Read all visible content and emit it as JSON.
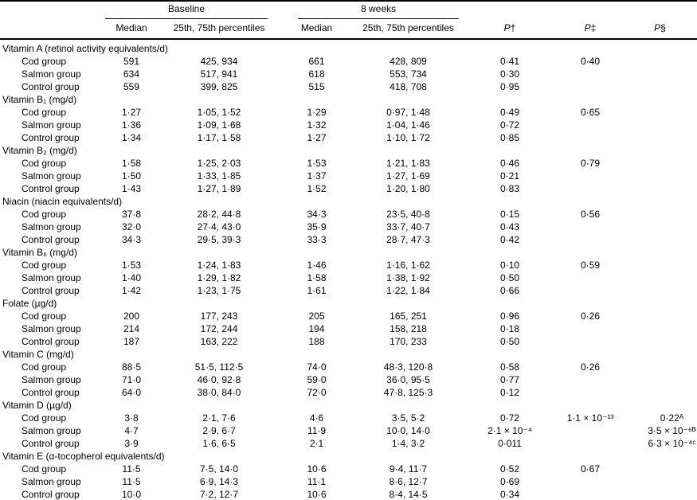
{
  "table": {
    "header": {
      "baseline": "Baseline",
      "eight_weeks": "8 weeks",
      "median": "Median",
      "percentiles": "25th, 75th percentiles",
      "p_columns": [
        {
          "p": "P",
          "mark": "†"
        },
        {
          "p": "P",
          "mark": "‡"
        },
        {
          "p": "P",
          "mark": "§"
        }
      ]
    },
    "sections": [
      {
        "name": "Vitamin A (retinol activity equivalents/d)",
        "rows": [
          {
            "label": "Cod group",
            "baseline_median": "591",
            "baseline_pct": "425, 934",
            "wk8_median": "661",
            "wk8_pct": "428, 809",
            "p1": "0·41",
            "p2": "0·40",
            "p3": ""
          },
          {
            "label": "Salmon group",
            "baseline_median": "634",
            "baseline_pct": "517, 941",
            "wk8_median": "618",
            "wk8_pct": "553, 734",
            "p1": "0·30",
            "p2": "",
            "p3": ""
          },
          {
            "label": "Control group",
            "baseline_median": "559",
            "baseline_pct": "399, 825",
            "wk8_median": "515",
            "wk8_pct": "418, 708",
            "p1": "0·95",
            "p2": "",
            "p3": ""
          }
        ]
      },
      {
        "name": "Vitamin B₁ (mg/d)",
        "rows": [
          {
            "label": "Cod group",
            "baseline_median": "1·27",
            "baseline_pct": "1·05, 1·52",
            "wk8_median": "1·29",
            "wk8_pct": "0·97, 1·48",
            "p1": "0·49",
            "p2": "0·65",
            "p3": ""
          },
          {
            "label": "Salmon group",
            "baseline_median": "1·36",
            "baseline_pct": "1·09, 1·68",
            "wk8_median": "1·32",
            "wk8_pct": "1·04, 1·46",
            "p1": "0·72",
            "p2": "",
            "p3": ""
          },
          {
            "label": "Control group",
            "baseline_median": "1·34",
            "baseline_pct": "1·17, 1·58",
            "wk8_median": "1·27",
            "wk8_pct": "1·10, 1·72",
            "p1": "0·85",
            "p2": "",
            "p3": ""
          }
        ]
      },
      {
        "name": "Vitamin B₂ (mg/d)",
        "rows": [
          {
            "label": "Cod group",
            "baseline_median": "1·58",
            "baseline_pct": "1·25, 2·03",
            "wk8_median": "1·53",
            "wk8_pct": "1·21, 1·83",
            "p1": "0·46",
            "p2": "0·79",
            "p3": ""
          },
          {
            "label": "Salmon group",
            "baseline_median": "1·50",
            "baseline_pct": "1·33, 1·85",
            "wk8_median": "1·37",
            "wk8_pct": "1·27, 1·69",
            "p1": "0·21",
            "p2": "",
            "p3": ""
          },
          {
            "label": "Control group",
            "baseline_median": "1·43",
            "baseline_pct": "1·27, 1·89",
            "wk8_median": "1·52",
            "wk8_pct": "1·20, 1·80",
            "p1": "0·83",
            "p2": "",
            "p3": ""
          }
        ]
      },
      {
        "name": "Niacin (niacin equivalents/d)",
        "rows": [
          {
            "label": "Cod group",
            "baseline_median": "37·8",
            "baseline_pct": "28·2, 44·8",
            "wk8_median": "34·3",
            "wk8_pct": "23·5, 40·8",
            "p1": "0·15",
            "p2": "0·56",
            "p3": ""
          },
          {
            "label": "Salmon group",
            "baseline_median": "32·0",
            "baseline_pct": "27·4, 43·0",
            "wk8_median": "35·9",
            "wk8_pct": "33·7, 40·7",
            "p1": "0·43",
            "p2": "",
            "p3": ""
          },
          {
            "label": "Control group",
            "baseline_median": "34·3",
            "baseline_pct": "29·5, 39·3",
            "wk8_median": "33·3",
            "wk8_pct": "28·7, 47·3",
            "p1": "0·42",
            "p2": "",
            "p3": ""
          }
        ]
      },
      {
        "name": "Vitamin B₆ (mg/d)",
        "rows": [
          {
            "label": "Cod group",
            "baseline_median": "1·53",
            "baseline_pct": "1·24, 1·83",
            "wk8_median": "1·46",
            "wk8_pct": "1·16, 1·62",
            "p1": "0·10",
            "p2": "0·59",
            "p3": ""
          },
          {
            "label": "Salmon group",
            "baseline_median": "1·40",
            "baseline_pct": "1·29, 1·82",
            "wk8_median": "1·58",
            "wk8_pct": "1·38, 1·92",
            "p1": "0·50",
            "p2": "",
            "p3": ""
          },
          {
            "label": "Control group",
            "baseline_median": "1·42",
            "baseline_pct": "1·23, 1·75",
            "wk8_median": "1·61",
            "wk8_pct": "1·22, 1·84",
            "p1": "0·66",
            "p2": "",
            "p3": ""
          }
        ]
      },
      {
        "name": "Folate (µg/d)",
        "rows": [
          {
            "label": "Cod group",
            "baseline_median": "200",
            "baseline_pct": "177, 243",
            "wk8_median": "205",
            "wk8_pct": "165, 251",
            "p1": "0·96",
            "p2": "0·26",
            "p3": ""
          },
          {
            "label": "Salmon group",
            "baseline_median": "214",
            "baseline_pct": "172, 244",
            "wk8_median": "194",
            "wk8_pct": "158, 218",
            "p1": "0·18",
            "p2": "",
            "p3": ""
          },
          {
            "label": "Control group",
            "baseline_median": "187",
            "baseline_pct": "163, 222",
            "wk8_median": "188",
            "wk8_pct": "170, 233",
            "p1": "0·50",
            "p2": "",
            "p3": ""
          }
        ]
      },
      {
        "name": "Vitamin C (mg/d)",
        "rows": [
          {
            "label": "Cod group",
            "baseline_median": "88·5",
            "baseline_pct": "51·5, 112·5",
            "wk8_median": "74·0",
            "wk8_pct": "48·3, 120·8",
            "p1": "0·58",
            "p2": "0·26",
            "p3": ""
          },
          {
            "label": "Salmon group",
            "baseline_median": "71·0",
            "baseline_pct": "46·0, 92·8",
            "wk8_median": "59·0",
            "wk8_pct": "36·0, 95·5",
            "p1": "0·77",
            "p2": "",
            "p3": ""
          },
          {
            "label": "Control group",
            "baseline_median": "64·0",
            "baseline_pct": "38·0, 84·0",
            "wk8_median": "72·0",
            "wk8_pct": "47·8, 125·3",
            "p1": "0·12",
            "p2": "",
            "p3": ""
          }
        ]
      },
      {
        "name": "Vitamin D (µg/d)",
        "rows": [
          {
            "label": "Cod group",
            "baseline_median": "3·8",
            "baseline_pct": "2·1, 7·6",
            "wk8_median": "4·6",
            "wk8_pct": "3·5, 5·2",
            "p1": "0·72",
            "p2": "1·1 × 10⁻¹³",
            "p3": "0·22ᴬ"
          },
          {
            "label": "Salmon group",
            "baseline_median": "4·7",
            "baseline_pct": "2·9, 6·7",
            "wk8_median": "11·9",
            "wk8_pct": "10·0, 14·0",
            "p1": "2·1 × 10⁻⁴",
            "p2": "",
            "p3": "3·5 × 10⁻⁶ᴮ"
          },
          {
            "label": "Control group",
            "baseline_median": "3·9",
            "baseline_pct": "1·6, 6·5",
            "wk8_median": "2·1",
            "wk8_pct": "1·4, 3·2",
            "p1": "0·011",
            "p2": "",
            "p3": "6·3 × 10⁻⁴ᶜ"
          }
        ]
      },
      {
        "name": "Vitamin E (α-tocopherol equivalents/d)",
        "rows": [
          {
            "label": "Cod group",
            "baseline_median": "11·5",
            "baseline_pct": "7·5, 14·0",
            "wk8_median": "10·6",
            "wk8_pct": "9·4, 11·7",
            "p1": "0·52",
            "p2": "0·67",
            "p3": ""
          },
          {
            "label": "Salmon group",
            "baseline_median": "11·5",
            "baseline_pct": "6·9, 14·3",
            "wk8_median": "11·1",
            "wk8_pct": "8·6, 12·7",
            "p1": "0·69",
            "p2": "",
            "p3": ""
          },
          {
            "label": "Control group",
            "baseline_median": "10·0",
            "baseline_pct": "7·2, 12·7",
            "wk8_median": "10·6",
            "wk8_pct": "8·4, 14·5",
            "p1": "0·34",
            "p2": "",
            "p3": ""
          }
        ]
      }
    ]
  }
}
